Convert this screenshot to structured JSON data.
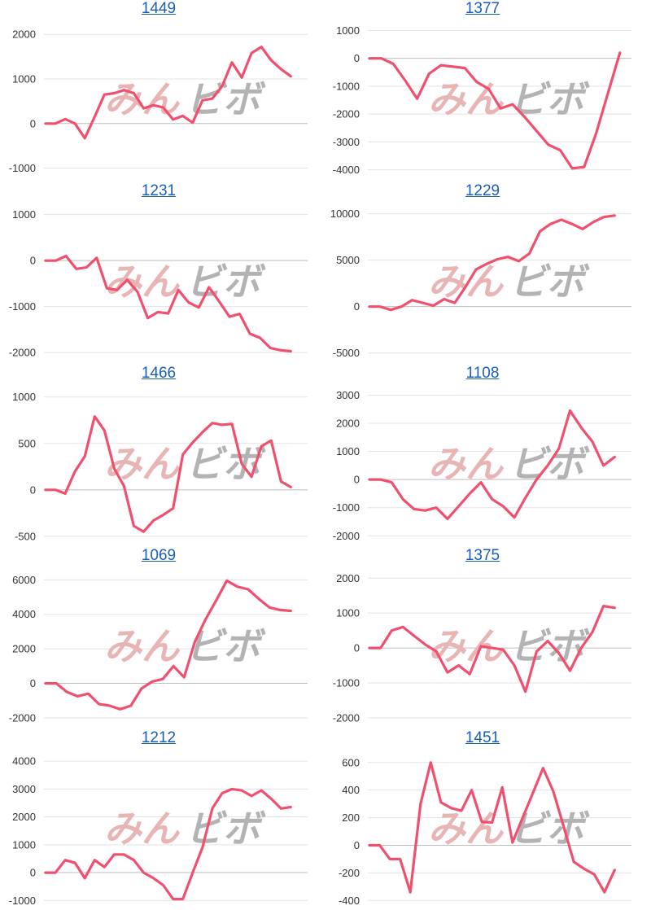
{
  "series_color": "#f0506e",
  "watermark": {
    "part_a": "みん",
    "part_b": "ビボ"
  },
  "chart_data": [
    {
      "type": "line",
      "title": "1449",
      "yticks": [
        2000,
        1000,
        0,
        -1000
      ],
      "ylim": [
        -1100,
        2150
      ],
      "values": [
        0,
        0,
        100,
        0,
        -330,
        150,
        650,
        680,
        750,
        680,
        340,
        410,
        360,
        90,
        170,
        20,
        520,
        560,
        840,
        1370,
        1030,
        1580,
        1720,
        1420,
        1220,
        1060
      ]
    },
    {
      "type": "line",
      "title": "1377",
      "yticks": [
        1000,
        0,
        -1000,
        -2000,
        -3000,
        -4000
      ],
      "ylim": [
        -4100,
        1100
      ],
      "values": [
        0,
        0,
        -200,
        -800,
        -1450,
        -550,
        -250,
        -300,
        -350,
        -850,
        -1100,
        -1800,
        -1650,
        -2100,
        -2600,
        -3100,
        -3300,
        -3950,
        -3900,
        -2700,
        -1250,
        200
      ]
    },
    {
      "type": "line",
      "title": "1231",
      "yticks": [
        1000,
        0,
        -1000,
        -2000
      ],
      "ylim": [
        -2050,
        1100
      ],
      "values": [
        0,
        0,
        100,
        -180,
        -150,
        60,
        -600,
        -640,
        -420,
        -680,
        -1250,
        -1120,
        -1150,
        -640,
        -910,
        -1020,
        -580,
        -890,
        -1220,
        -1160,
        -1590,
        -1680,
        -1900,
        -1950,
        -1970
      ]
    },
    {
      "type": "line",
      "title": "1229",
      "yticks": [
        10000,
        5000,
        0,
        -5000
      ],
      "ylim": [
        -5200,
        10400
      ],
      "values": [
        0,
        0,
        -350,
        0,
        700,
        400,
        100,
        800,
        400,
        2100,
        4000,
        4600,
        5100,
        5350,
        4900,
        5700,
        8100,
        8900,
        9350,
        8900,
        8350,
        9100,
        9650,
        9800
      ]
    },
    {
      "type": "line",
      "title": "1466",
      "yticks": [
        1000,
        500,
        0,
        -500
      ],
      "ylim": [
        -510,
        1050
      ],
      "values": [
        0,
        0,
        -40,
        200,
        360,
        790,
        640,
        230,
        40,
        -390,
        -450,
        -330,
        -270,
        -200,
        380,
        510,
        620,
        720,
        700,
        710,
        280,
        140,
        470,
        530,
        90,
        30
      ]
    },
    {
      "type": "line",
      "title": "1108",
      "yticks": [
        3000,
        2000,
        1000,
        0,
        -1000,
        -2000
      ],
      "ylim": [
        -2050,
        3100
      ],
      "values": [
        0,
        0,
        -100,
        -700,
        -1050,
        -1100,
        -1000,
        -1400,
        -950,
        -500,
        -100,
        -700,
        -950,
        -1350,
        -650,
        0,
        500,
        1100,
        2450,
        1850,
        1350,
        500,
        800
      ]
    },
    {
      "type": "line",
      "title": "1069",
      "yticks": [
        6000,
        4000,
        2000,
        0,
        -2000
      ],
      "ylim": [
        -2100,
        6300
      ],
      "values": [
        0,
        0,
        -500,
        -750,
        -600,
        -1200,
        -1300,
        -1500,
        -1300,
        -300,
        100,
        250,
        1000,
        350,
        2400,
        3700,
        4800,
        5950,
        5600,
        5450,
        4900,
        4400,
        4250,
        4200
      ]
    },
    {
      "type": "line",
      "title": "1375",
      "yticks": [
        2000,
        1000,
        0,
        -1000,
        -2000
      ],
      "ylim": [
        -2050,
        2100
      ],
      "values": [
        0,
        0,
        500,
        600,
        350,
        100,
        -100,
        -700,
        -500,
        -750,
        50,
        0,
        -50,
        -500,
        -1250,
        -100,
        200,
        -150,
        -650,
        0,
        450,
        1200,
        1150
      ]
    },
    {
      "type": "line",
      "title": "1212",
      "yticks": [
        4000,
        3000,
        2000,
        1000,
        0,
        -1000
      ],
      "ylim": [
        -1050,
        4150
      ],
      "values": [
        0,
        0,
        450,
        350,
        -200,
        450,
        200,
        650,
        650,
        450,
        0,
        -200,
        -450,
        -950,
        -950,
        0,
        900,
        2300,
        2850,
        3000,
        2950,
        2750,
        2950,
        2650,
        2300,
        2350
      ]
    },
    {
      "type": "line",
      "title": "1451",
      "yticks": [
        600,
        400,
        200,
        0,
        -200,
        -400
      ],
      "ylim": [
        -410,
        640
      ],
      "values": [
        0,
        0,
        -100,
        -100,
        -340,
        300,
        600,
        310,
        270,
        250,
        400,
        170,
        165,
        420,
        20,
        200,
        380,
        560,
        390,
        140,
        -120,
        -170,
        -210,
        -340,
        -180
      ]
    }
  ]
}
